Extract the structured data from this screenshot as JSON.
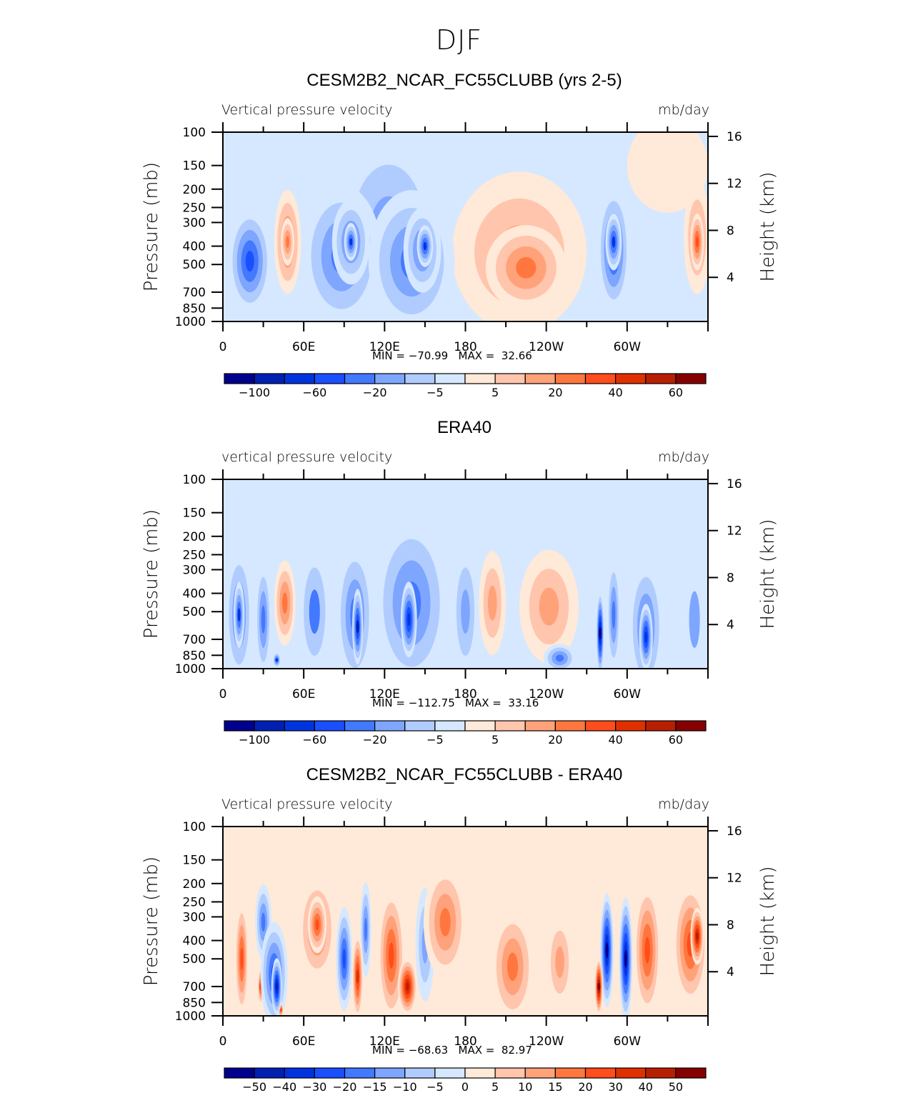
{
  "suptitle": "DJF",
  "colors": {
    "palette": [
      "#00008e",
      "#0020b4",
      "#0033e0",
      "#1a4fff",
      "#4279ff",
      "#7ea6ff",
      "#b0ccff",
      "#d5e8ff",
      "#ffe9d8",
      "#ffc5ad",
      "#ffa27a",
      "#ff773f",
      "#ff4d1c",
      "#e03000",
      "#b81f00",
      "#870000"
    ]
  },
  "axes": {
    "x_ticks": [
      "0",
      "60E",
      "120E",
      "180",
      "120W",
      "60W"
    ],
    "x_range_deg": [
      0,
      360
    ],
    "x_major_step_deg": 60,
    "x_minor_step_deg": 30,
    "p_ticks": [
      100,
      150,
      200,
      250,
      300,
      400,
      500,
      700,
      850,
      1000
    ],
    "p_range": [
      100,
      1000
    ],
    "h_ticks": [
      16,
      12,
      8,
      4
    ],
    "left_label": "Pressure (mb)",
    "right_label": "Height (km)"
  },
  "panels": [
    {
      "title": "CESM2B2_NCAR_FC55CLUBB (yrs 2-5)",
      "left_header": "Vertical pressure velocity",
      "right_header": "mb/day",
      "minmax": "MIN = −70.99   MAX =  32.66",
      "colorbar_labels": [
        "−100",
        "−60",
        "−20",
        "−5",
        "5",
        "20",
        "40",
        "60"
      ],
      "levels": [
        -100,
        -80,
        -60,
        -40,
        -20,
        -10,
        -5,
        0,
        5,
        10,
        20,
        30,
        40,
        50,
        60
      ],
      "features": [
        {
          "lon": 20,
          "p": 480,
          "dlon": 16,
          "dp": 0.55,
          "v": -50
        },
        {
          "lon": 19,
          "p": 420,
          "dlon": 9,
          "dp": 0.35,
          "v": -40
        },
        {
          "lon": 48,
          "p": 380,
          "dlon": 10,
          "dp": 0.55,
          "v": 22
        },
        {
          "lon": 48,
          "p": 380,
          "dlon": 5,
          "dp": 0.25,
          "v": 28
        },
        {
          "lon": 88,
          "p": 450,
          "dlon": 30,
          "dp": 0.75,
          "v": -30
        },
        {
          "lon": 95,
          "p": 380,
          "dlon": 14,
          "dp": 0.45,
          "v": -40
        },
        {
          "lon": 95,
          "p": 380,
          "dlon": 5,
          "dp": 0.2,
          "v": -60
        },
        {
          "lon": 140,
          "p": 480,
          "dlon": 32,
          "dp": 0.75,
          "v": -30
        },
        {
          "lon": 148,
          "p": 420,
          "dlon": 14,
          "dp": 0.45,
          "v": -40
        },
        {
          "lon": 150,
          "p": 400,
          "dlon": 6,
          "dp": 0.22,
          "v": -60
        },
        {
          "lon": 123,
          "p": 320,
          "dlon": 40,
          "dp": 1.0,
          "v": -12
        },
        {
          "lon": 220,
          "p": 430,
          "dlon": 50,
          "dp": 0.85,
          "v": 12
        },
        {
          "lon": 225,
          "p": 520,
          "dlon": 30,
          "dp": 0.45,
          "v": 25
        },
        {
          "lon": 290,
          "p": 420,
          "dlon": 12,
          "dp": 0.65,
          "v": -45
        },
        {
          "lon": 290,
          "p": 380,
          "dlon": 6,
          "dp": 0.3,
          "v": -60
        },
        {
          "lon": 352,
          "p": 360,
          "dlon": 10,
          "dp": 0.6,
          "v": 20
        },
        {
          "lon": 352,
          "p": 380,
          "dlon": 5,
          "dp": 0.3,
          "v": 32
        },
        {
          "lon": 330,
          "p": 150,
          "dlon": 30,
          "dp": 0.5,
          "v": 4
        }
      ]
    },
    {
      "title": "ERA40",
      "left_header": "vertical pressure velocity",
      "right_header": "mb/day",
      "minmax": "MIN = −112.75   MAX =  33.16",
      "colorbar_labels": [
        "−100",
        "−60",
        "−20",
        "−5",
        "5",
        "20",
        "40",
        "60"
      ],
      "levels": [
        -100,
        -80,
        -60,
        -40,
        -20,
        -10,
        -5,
        0,
        5,
        10,
        20,
        30,
        40,
        50,
        60
      ],
      "features": [
        {
          "lon": 12,
          "p": 520,
          "dlon": 10,
          "dp": 0.7,
          "v": -40
        },
        {
          "lon": 12,
          "p": 520,
          "dlon": 4,
          "dp": 0.35,
          "v": -60
        },
        {
          "lon": 30,
          "p": 550,
          "dlon": 6,
          "dp": 0.6,
          "v": -30
        },
        {
          "lon": 46,
          "p": 450,
          "dlon": 8,
          "dp": 0.45,
          "v": 30
        },
        {
          "lon": 40,
          "p": 900,
          "dlon": 3,
          "dp": 0.08,
          "v": -60
        },
        {
          "lon": 68,
          "p": 500,
          "dlon": 12,
          "dp": 0.7,
          "v": -20
        },
        {
          "lon": 98,
          "p": 520,
          "dlon": 14,
          "dp": 0.75,
          "v": -35
        },
        {
          "lon": 100,
          "p": 600,
          "dlon": 4,
          "dp": 0.4,
          "v": -80
        },
        {
          "lon": 140,
          "p": 450,
          "dlon": 28,
          "dp": 0.9,
          "v": -30
        },
        {
          "lon": 138,
          "p": 550,
          "dlon": 6,
          "dp": 0.4,
          "v": -70
        },
        {
          "lon": 180,
          "p": 500,
          "dlon": 10,
          "dp": 0.7,
          "v": -18
        },
        {
          "lon": 200,
          "p": 450,
          "dlon": 10,
          "dp": 0.55,
          "v": 12
        },
        {
          "lon": 242,
          "p": 470,
          "dlon": 22,
          "dp": 0.6,
          "v": 14
        },
        {
          "lon": 250,
          "p": 880,
          "dlon": 12,
          "dp": 0.15,
          "v": -25
        },
        {
          "lon": 280,
          "p": 650,
          "dlon": 3,
          "dp": 0.45,
          "v": -100
        },
        {
          "lon": 290,
          "p": 520,
          "dlon": 5,
          "dp": 0.6,
          "v": -35
        },
        {
          "lon": 314,
          "p": 600,
          "dlon": 13,
          "dp": 0.7,
          "v": -40
        },
        {
          "lon": 314,
          "p": 680,
          "dlon": 5,
          "dp": 0.35,
          "v": -70
        },
        {
          "lon": 350,
          "p": 550,
          "dlon": 8,
          "dp": 0.6,
          "v": -10
        }
      ]
    },
    {
      "title": "CESM2B2_NCAR_FC55CLUBB - ERA40",
      "left_header": "Vertical pressure velocity",
      "right_header": "mb/day",
      "minmax": "MIN = −68.63   MAX =  82.97",
      "colorbar_labels": [
        "−50",
        "−40",
        "−30",
        "−20",
        "−15",
        "−10",
        "−5",
        "0",
        "5",
        "10",
        "15",
        "20",
        "30",
        "40",
        "50"
      ],
      "levels": [
        -50,
        -40,
        -30,
        -20,
        -15,
        -10,
        -5,
        0,
        5,
        10,
        15,
        20,
        30,
        40,
        50
      ],
      "features": [
        {
          "lon": 14,
          "p": 500,
          "dlon": 5,
          "dp": 0.6,
          "v": 22
        },
        {
          "lon": 30,
          "p": 320,
          "dlon": 6,
          "dp": 0.4,
          "v": -18
        },
        {
          "lon": 38,
          "p": 600,
          "dlon": 10,
          "dp": 0.55,
          "v": -28
        },
        {
          "lon": 40,
          "p": 700,
          "dlon": 4,
          "dp": 0.3,
          "v": -45
        },
        {
          "lon": 28,
          "p": 700,
          "dlon": 2,
          "dp": 0.2,
          "v": 25
        },
        {
          "lon": 43,
          "p": 930,
          "dlon": 2,
          "dp": 0.08,
          "v": 30
        },
        {
          "lon": 70,
          "p": 350,
          "dlon": 14,
          "dp": 0.55,
          "v": 16
        },
        {
          "lon": 70,
          "p": 330,
          "dlon": 7,
          "dp": 0.3,
          "v": 24
        },
        {
          "lon": 90,
          "p": 500,
          "dlon": 6,
          "dp": 0.55,
          "v": -25
        },
        {
          "lon": 100,
          "p": 620,
          "dlon": 4,
          "dp": 0.45,
          "v": 40
        },
        {
          "lon": 106,
          "p": 350,
          "dlon": 4,
          "dp": 0.5,
          "v": -18
        },
        {
          "lon": 125,
          "p": 480,
          "dlon": 10,
          "dp": 0.7,
          "v": 25
        },
        {
          "lon": 137,
          "p": 700,
          "dlon": 7,
          "dp": 0.3,
          "v": 45
        },
        {
          "lon": 150,
          "p": 420,
          "dlon": 7,
          "dp": 0.6,
          "v": -14
        },
        {
          "lon": 165,
          "p": 320,
          "dlon": 16,
          "dp": 0.6,
          "v": 20
        },
        {
          "lon": 215,
          "p": 550,
          "dlon": 16,
          "dp": 0.6,
          "v": 18
        },
        {
          "lon": 250,
          "p": 520,
          "dlon": 10,
          "dp": 0.5,
          "v": 15
        },
        {
          "lon": 279,
          "p": 700,
          "dlon": 3,
          "dp": 0.3,
          "v": 55
        },
        {
          "lon": 285,
          "p": 450,
          "dlon": 5,
          "dp": 0.6,
          "v": -50
        },
        {
          "lon": 299,
          "p": 500,
          "dlon": 5,
          "dp": 0.65,
          "v": -50
        },
        {
          "lon": 315,
          "p": 450,
          "dlon": 10,
          "dp": 0.7,
          "v": 28
        },
        {
          "lon": 347,
          "p": 420,
          "dlon": 13,
          "dp": 0.65,
          "v": 30
        },
        {
          "lon": 352,
          "p": 380,
          "dlon": 5,
          "dp": 0.3,
          "v": 42
        }
      ]
    }
  ]
}
